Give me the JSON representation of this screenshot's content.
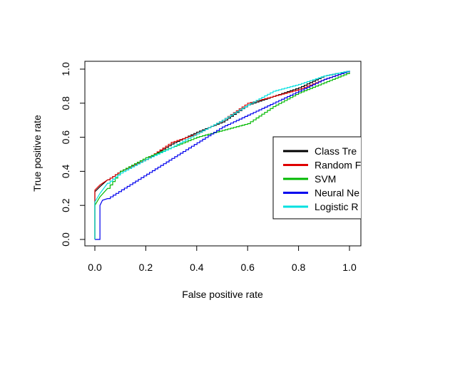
{
  "chart_data": {
    "type": "line",
    "xlabel": "False positive rate",
    "ylabel": "True positive rate",
    "xlim": [
      0,
      1
    ],
    "ylim": [
      0,
      1
    ],
    "x_ticks": [
      "0.0",
      "0.2",
      "0.4",
      "0.6",
      "0.8",
      "1.0"
    ],
    "y_ticks": [
      "0.0",
      "0.2",
      "0.4",
      "0.6",
      "0.8",
      "1.0"
    ],
    "grid": false,
    "legend_position": "right",
    "legend_clipped_labels": [
      "Class Tre",
      "Random F",
      "SVM",
      "Neural Ne",
      "Logistic R"
    ],
    "series": [
      {
        "name": "Class Tre",
        "color": "#000000",
        "x": [
          0,
          0,
          0.02,
          0.05,
          0.1,
          0.2,
          0.3,
          0.4,
          0.5,
          0.6,
          0.7,
          0.8,
          0.9,
          1.0
        ],
        "y": [
          0,
          0.28,
          0.31,
          0.35,
          0.4,
          0.47,
          0.56,
          0.63,
          0.69,
          0.79,
          0.84,
          0.89,
          0.96,
          0.99
        ]
      },
      {
        "name": "Random F",
        "color": "#df0000",
        "x": [
          0,
          0,
          0.02,
          0.05,
          0.1,
          0.2,
          0.3,
          0.4,
          0.5,
          0.6,
          0.7,
          0.8,
          0.9,
          1.0
        ],
        "y": [
          0,
          0.29,
          0.32,
          0.35,
          0.4,
          0.47,
          0.57,
          0.62,
          0.7,
          0.8,
          0.84,
          0.88,
          0.94,
          0.99
        ]
      },
      {
        "name": "SVM",
        "color": "#00b800",
        "x": [
          0,
          0,
          0.02,
          0.05,
          0.1,
          0.2,
          0.3,
          0.4,
          0.5,
          0.6,
          0.7,
          0.8,
          0.9,
          1.0
        ],
        "y": [
          0,
          0.2,
          0.25,
          0.3,
          0.4,
          0.48,
          0.54,
          0.6,
          0.64,
          0.68,
          0.78,
          0.86,
          0.92,
          0.98
        ]
      },
      {
        "name": "Neural Ne",
        "color": "#0000ee",
        "x": [
          0,
          0.02,
          0.02,
          0.03,
          0.05,
          0.5,
          0.8,
          0.9,
          1.0
        ],
        "y": [
          0,
          0,
          0.2,
          0.23,
          0.24,
          0.66,
          0.87,
          0.94,
          0.99
        ]
      },
      {
        "name": "Logistic R",
        "color": "#00e0e0",
        "x": [
          0,
          0,
          0.02,
          0.05,
          0.1,
          0.2,
          0.3,
          0.4,
          0.5,
          0.6,
          0.7,
          0.8,
          0.9,
          1.0
        ],
        "y": [
          0,
          0.22,
          0.27,
          0.33,
          0.39,
          0.47,
          0.54,
          0.62,
          0.7,
          0.79,
          0.87,
          0.91,
          0.96,
          0.99
        ]
      }
    ]
  }
}
